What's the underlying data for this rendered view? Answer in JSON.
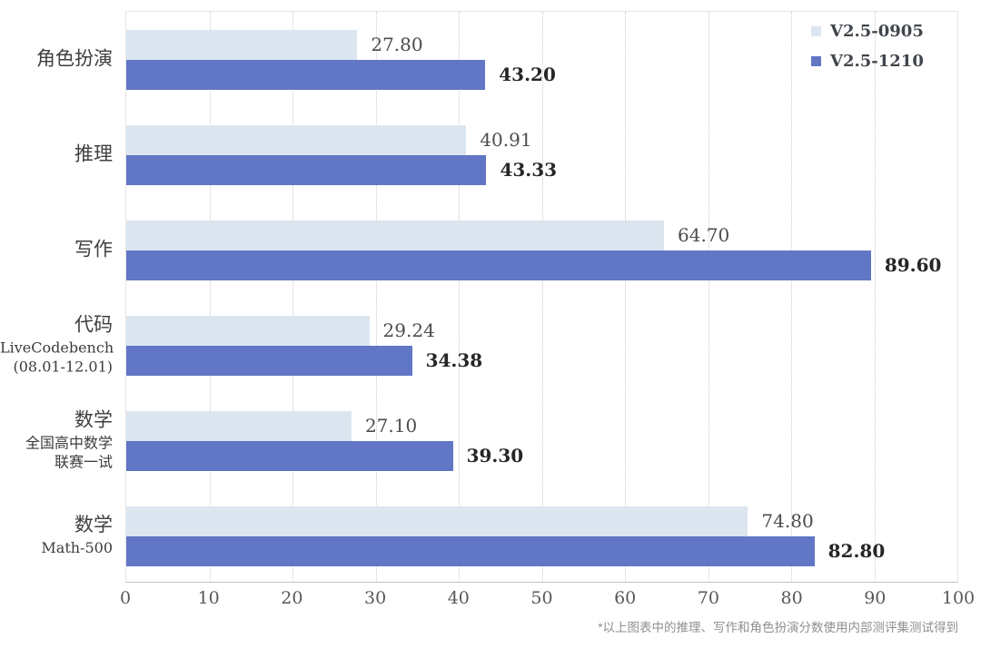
{
  "legend": {
    "items": [
      {
        "label": "V2.5-0905"
      },
      {
        "label": "V2.5-1210"
      }
    ]
  },
  "footnote": "*以上图表中的推理、写作和角色扮演分数使用内部测评集测试得到",
  "colors": {
    "series_light": "#dce6f0",
    "series_dark": "#6176c4",
    "grid": "#cccccc",
    "axis": "#c4c4c4",
    "value_text": "#4c4c4c",
    "value_text_bold": "#262626"
  },
  "chart_data": {
    "type": "bar",
    "orientation": "horizontal",
    "title": "",
    "xlabel": "",
    "ylabel": "",
    "grid": true,
    "legend_position": "top-right",
    "xlim": [
      0,
      100
    ],
    "xticks": [
      0,
      10,
      20,
      30,
      40,
      50,
      60,
      70,
      80,
      90,
      100
    ],
    "categories": [
      {
        "label": "角色扮演",
        "sublines": []
      },
      {
        "label": "推理",
        "sublines": []
      },
      {
        "label": "写作",
        "sublines": []
      },
      {
        "label": "代码",
        "sublines": [
          "LiveCodebench",
          "(08.01-12.01)"
        ]
      },
      {
        "label": "数学",
        "sublines": [
          "全国高中数学",
          "联赛一试"
        ]
      },
      {
        "label": "数学",
        "sublines": [
          "Math-500"
        ]
      }
    ],
    "series": [
      {
        "name": "V2.5-0905",
        "color": "#dce6f0",
        "bold_values": false,
        "values": [
          27.8,
          40.91,
          64.7,
          29.24,
          27.1,
          74.8
        ],
        "labels": [
          "27.80",
          "40.91",
          "64.70",
          "29.24",
          "27.10",
          "74.80"
        ]
      },
      {
        "name": "V2.5-1210",
        "color": "#6176c4",
        "bold_values": true,
        "values": [
          43.2,
          43.33,
          89.6,
          34.38,
          39.3,
          82.8
        ],
        "labels": [
          "43.20",
          "43.33",
          "89.60",
          "34.38",
          "39.30",
          "82.80"
        ]
      }
    ]
  }
}
